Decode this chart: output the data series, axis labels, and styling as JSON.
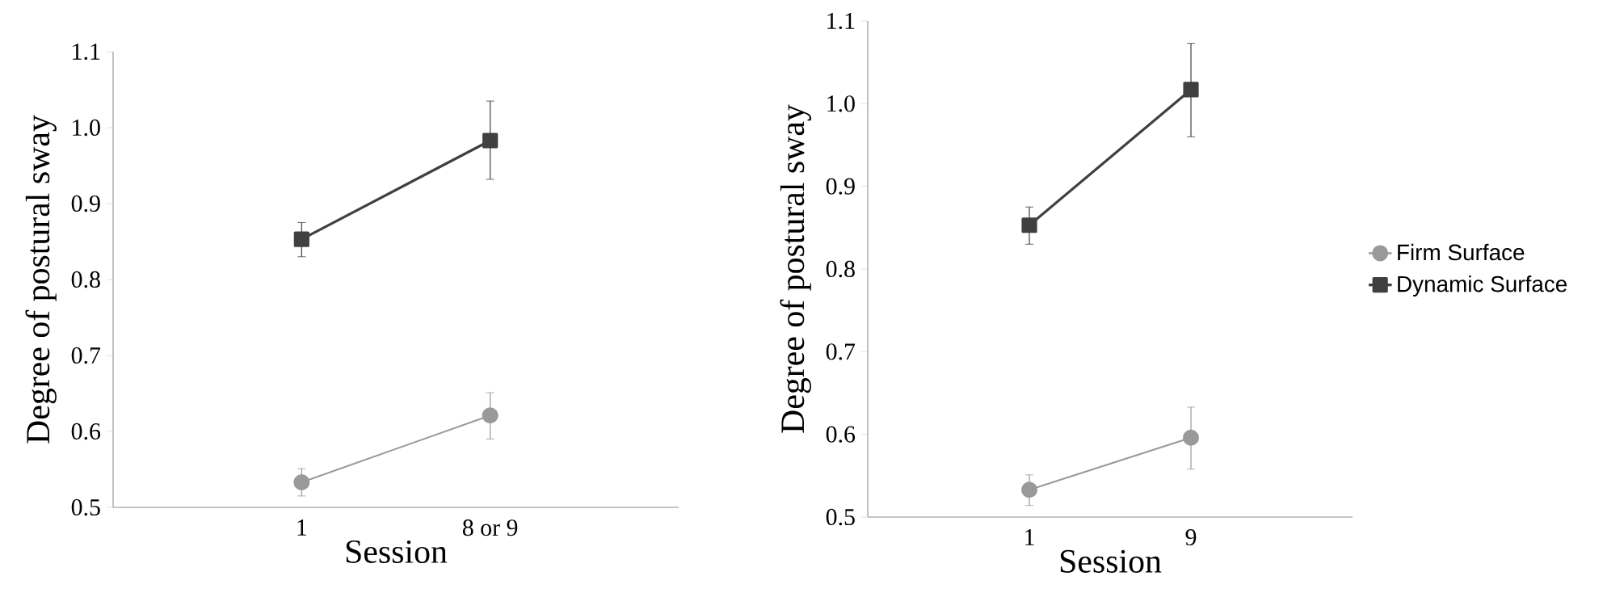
{
  "chart_data": [
    {
      "type": "line",
      "xlabel": "Session",
      "ylabel": "Degree of postural sway",
      "categories": [
        "1",
        "8 or 9"
      ],
      "ylim": [
        0.5,
        1.1
      ],
      "yticks": [
        0.5,
        0.6,
        0.7,
        0.8,
        0.9,
        {
          "value": 1.0,
          "label": "1.0"
        },
        1.1
      ],
      "grid": false,
      "legend": false,
      "series": [
        {
          "color": "#999999",
          "marker": "circle",
          "values": [
            0.533,
            0.621
          ],
          "errors": [
            [
              0.515,
              0.551
            ],
            [
              0.59,
              0.651
            ]
          ]
        },
        {
          "color": "#404040",
          "marker": "square",
          "values": [
            0.853,
            0.983
          ],
          "errors": [
            [
              0.83,
              0.875
            ],
            [
              0.932,
              1.035
            ]
          ]
        }
      ]
    },
    {
      "type": "line",
      "xlabel": "Session",
      "ylabel": "Degree of postural sway",
      "categories": [
        "1",
        "9"
      ],
      "ylim": [
        0.5,
        1.1
      ],
      "yticks": [
        0.5,
        0.6,
        0.7,
        0.8,
        0.9,
        {
          "value": 1.0,
          "label": "1.0"
        },
        1.1
      ],
      "grid": false,
      "legend": "right",
      "series": [
        {
          "name": "Firm Surface",
          "color": "#999999",
          "marker": "circle",
          "values": [
            0.533,
            0.596
          ],
          "errors": [
            [
              0.514,
              0.551
            ],
            [
              0.558,
              0.633
            ]
          ]
        },
        {
          "name": "Dynamic Surface",
          "color": "#404040",
          "marker": "square",
          "values": [
            0.853,
            1.017
          ],
          "errors": [
            [
              0.83,
              0.875
            ],
            [
              0.96,
              1.073
            ]
          ]
        }
      ]
    }
  ]
}
